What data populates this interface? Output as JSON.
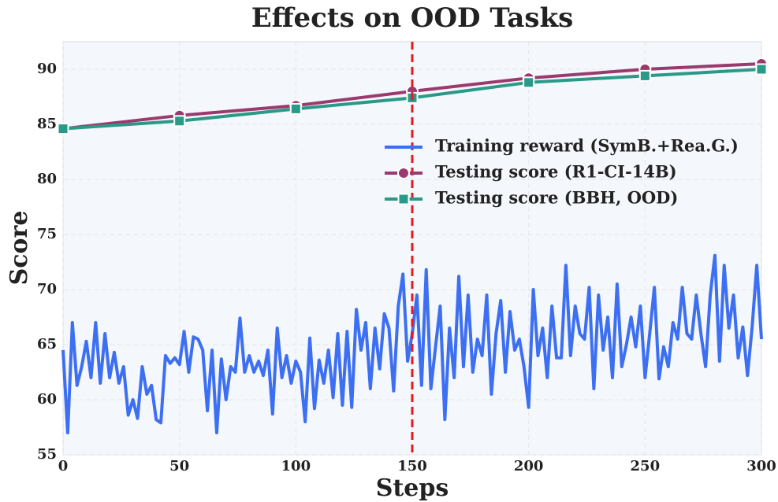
{
  "chart_data": {
    "type": "line",
    "title": "Effects on OOD Tasks",
    "x_label": "Steps",
    "y_label": "Score",
    "xlim": [
      0,
      300
    ],
    "ylim": [
      55,
      92.5
    ],
    "xticks": [
      0,
      50,
      100,
      150,
      200,
      250,
      300
    ],
    "yticks": [
      55,
      60,
      65,
      70,
      75,
      80,
      85,
      90
    ],
    "grid": true,
    "legend": "upper right",
    "vline": {
      "x": 150,
      "color": "#e41a1c"
    },
    "series": [
      {
        "name": "Training reward (SymB.+Rea.G.)",
        "color": "#3d6ff2",
        "marker": "none",
        "x": [
          0,
          2,
          4,
          6,
          8,
          10,
          12,
          14,
          16,
          18,
          20,
          22,
          24,
          26,
          28,
          30,
          32,
          34,
          36,
          38,
          40,
          42,
          44,
          46,
          48,
          50,
          52,
          54,
          56,
          58,
          60,
          62,
          64,
          66,
          68,
          70,
          72,
          74,
          76,
          78,
          80,
          82,
          84,
          86,
          88,
          90,
          92,
          94,
          96,
          98,
          100,
          102,
          104,
          106,
          108,
          110,
          112,
          114,
          116,
          118,
          120,
          122,
          124,
          126,
          128,
          130,
          132,
          134,
          136,
          138,
          140,
          142,
          144,
          146,
          148,
          150,
          152,
          154,
          156,
          158,
          160,
          162,
          164,
          166,
          168,
          170,
          172,
          174,
          176,
          178,
          180,
          182,
          184,
          186,
          188,
          190,
          192,
          194,
          196,
          198,
          200,
          202,
          204,
          206,
          208,
          210,
          212,
          214,
          216,
          218,
          220,
          222,
          224,
          226,
          228,
          230,
          232,
          234,
          236,
          238,
          240,
          242,
          244,
          246,
          248,
          250,
          252,
          254,
          256,
          258,
          260,
          262,
          264,
          266,
          268,
          270,
          272,
          274,
          276,
          278,
          280,
          282,
          284,
          286,
          288,
          290,
          292,
          294,
          296,
          298,
          300
        ],
        "values": [
          64.5,
          57,
          67,
          61.3,
          63,
          65.3,
          62,
          67,
          61.5,
          66,
          62,
          64.3,
          61.5,
          63,
          58.6,
          60,
          58.3,
          63,
          60.5,
          61.3,
          58.2,
          57.9,
          64,
          63.3,
          63.8,
          63.2,
          66.2,
          62.5,
          65.7,
          65.5,
          64.5,
          59,
          64.5,
          57,
          63.7,
          60,
          63,
          62.5,
          67.4,
          62.5,
          64,
          62.5,
          63.5,
          62.2,
          64.5,
          58.7,
          66.5,
          62,
          64,
          61.5,
          63.5,
          62.5,
          58,
          65.6,
          59.2,
          63.6,
          61.5,
          64.5,
          60.2,
          66,
          59.5,
          66.2,
          59.3,
          68.2,
          64.5,
          67,
          61,
          66.5,
          62.8,
          67.8,
          66.5,
          60.8,
          68.5,
          71.4,
          63.5,
          66,
          69.5,
          61.3,
          71.8,
          61,
          64.8,
          68.5,
          58.2,
          66.5,
          62,
          71.2,
          63,
          69.5,
          62.5,
          65.5,
          64,
          69.5,
          60.5,
          66,
          69,
          62.5,
          68,
          64.5,
          65.5,
          63,
          59.3,
          70,
          64,
          66.5,
          62,
          68.5,
          63.8,
          63.8,
          72.2,
          64,
          68.5,
          66,
          65.5,
          70.2,
          61,
          69.5,
          64.5,
          67.5,
          62,
          70.5,
          63,
          65,
          67.5,
          64.8,
          68.5,
          62,
          66,
          70.2,
          61.9,
          64.8,
          63,
          67,
          65.5,
          70.2,
          66,
          65.5,
          69.5,
          66,
          63,
          69.5,
          73.1,
          63.5,
          72.2,
          66.5,
          69.5,
          63.8,
          66.6,
          62.2,
          66.6,
          72.2,
          65.5
        ]
      },
      {
        "name": "Testing score (R1-CI-14B)",
        "color": "#9b3a6e",
        "marker": "circle",
        "x": [
          0,
          50,
          100,
          150,
          200,
          250,
          300
        ],
        "values": [
          84.6,
          85.8,
          86.7,
          88.0,
          89.2,
          90.0,
          90.5
        ]
      },
      {
        "name": "Testing score (BBH, OOD)",
        "color": "#2a9a88",
        "marker": "square",
        "x": [
          0,
          50,
          100,
          150,
          200,
          250,
          300
        ],
        "values": [
          84.6,
          85.3,
          86.4,
          87.4,
          88.8,
          89.4,
          90.0
        ]
      }
    ]
  }
}
